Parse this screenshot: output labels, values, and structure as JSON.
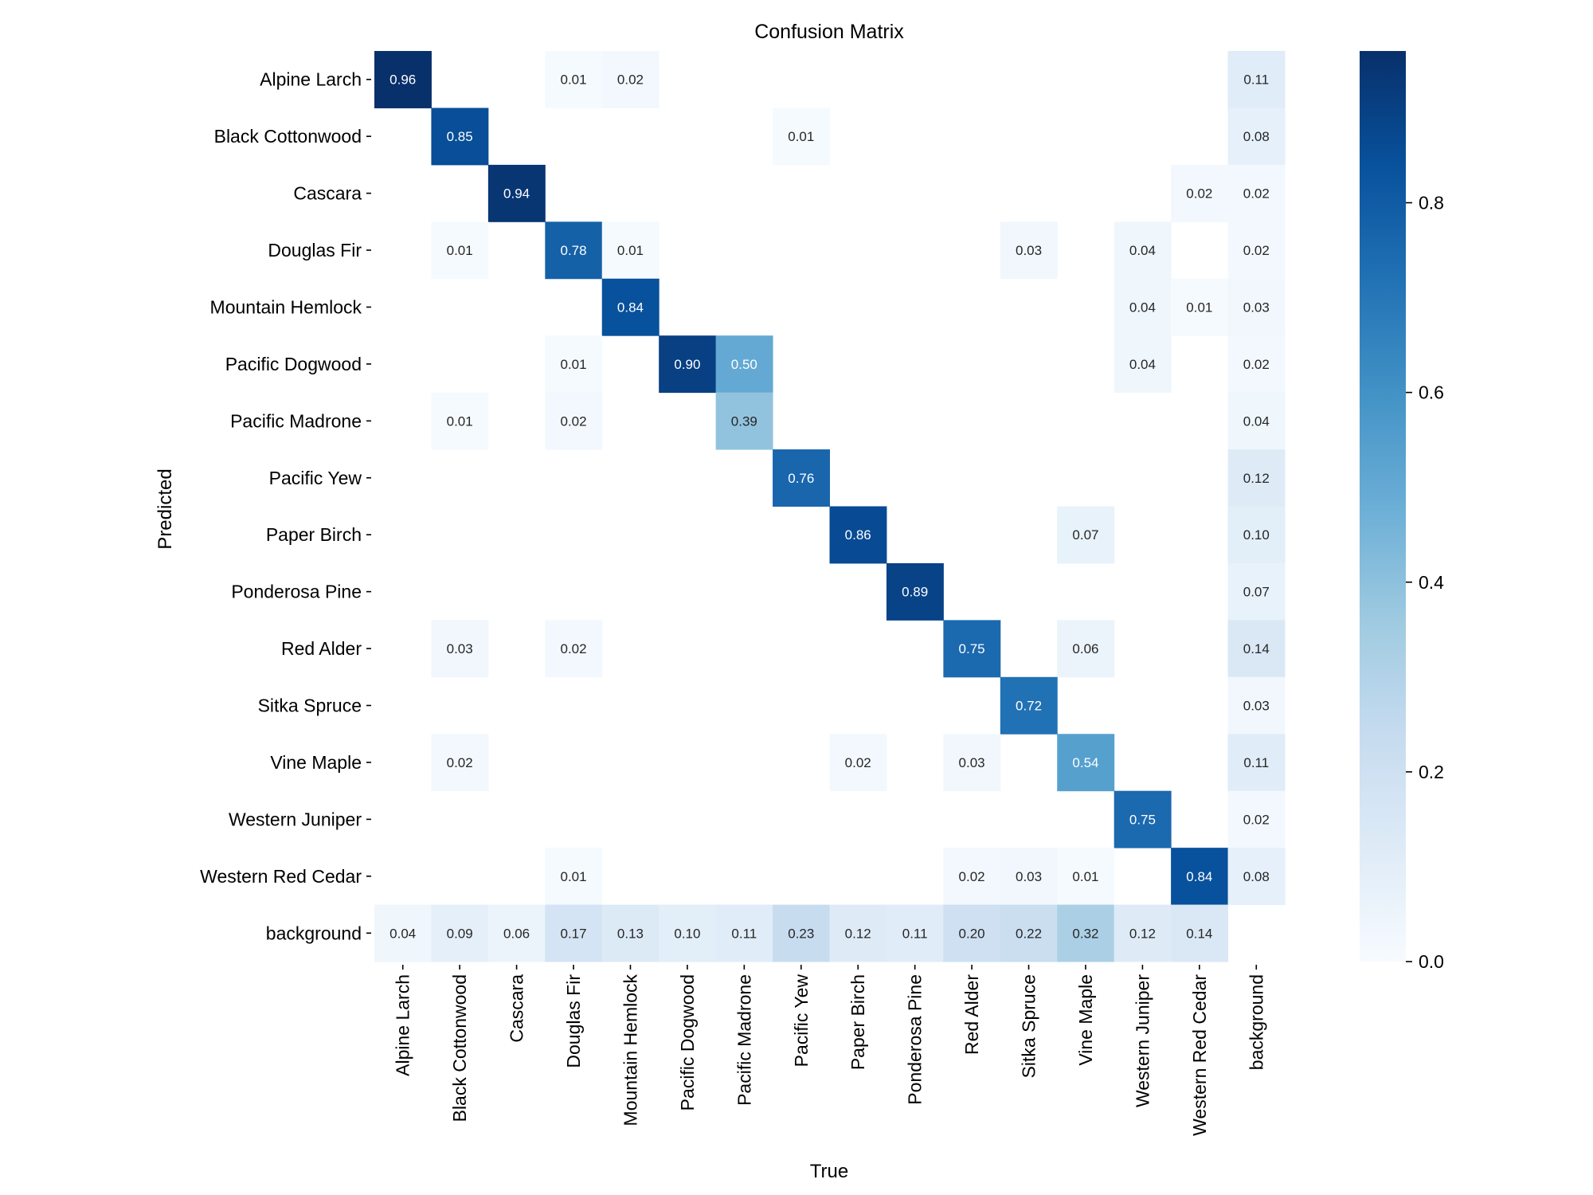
{
  "chart_data": {
    "type": "heatmap",
    "title": "Confusion Matrix",
    "xlabel": "True",
    "ylabel": "Predicted",
    "classes": [
      "Alpine Larch",
      "Black Cottonwood",
      "Cascara",
      "Douglas Fir",
      "Mountain Hemlock",
      "Pacific Dogwood",
      "Pacific Madrone",
      "Pacific Yew",
      "Paper Birch",
      "Ponderosa Pine",
      "Red Alder",
      "Sitka Spruce",
      "Vine Maple",
      "Western Juniper",
      "Western Red Cedar",
      "background"
    ],
    "matrix": [
      [
        0.96,
        null,
        null,
        0.01,
        0.02,
        null,
        null,
        null,
        null,
        null,
        null,
        null,
        null,
        null,
        null,
        0.11
      ],
      [
        null,
        0.85,
        null,
        null,
        null,
        null,
        null,
        0.01,
        null,
        null,
        null,
        null,
        null,
        null,
        null,
        0.08
      ],
      [
        null,
        null,
        0.94,
        null,
        null,
        null,
        null,
        null,
        null,
        null,
        null,
        null,
        null,
        null,
        0.02,
        0.02
      ],
      [
        null,
        0.01,
        null,
        0.78,
        0.01,
        null,
        null,
        null,
        null,
        null,
        null,
        0.03,
        null,
        0.04,
        null,
        0.02
      ],
      [
        null,
        null,
        null,
        null,
        0.84,
        null,
        null,
        null,
        null,
        null,
        null,
        null,
        null,
        0.04,
        0.01,
        0.03
      ],
      [
        null,
        null,
        null,
        0.01,
        null,
        0.9,
        0.5,
        null,
        null,
        null,
        null,
        null,
        null,
        0.04,
        null,
        0.02
      ],
      [
        null,
        0.01,
        null,
        0.02,
        null,
        null,
        0.39,
        null,
        null,
        null,
        null,
        null,
        null,
        null,
        null,
        0.04
      ],
      [
        null,
        null,
        null,
        null,
        null,
        null,
        null,
        0.76,
        null,
        null,
        null,
        null,
        null,
        null,
        null,
        0.12
      ],
      [
        null,
        null,
        null,
        null,
        null,
        null,
        null,
        null,
        0.86,
        null,
        null,
        null,
        0.07,
        null,
        null,
        0.1
      ],
      [
        null,
        null,
        null,
        null,
        null,
        null,
        null,
        null,
        null,
        0.89,
        null,
        null,
        null,
        null,
        null,
        0.07
      ],
      [
        null,
        0.03,
        null,
        0.02,
        null,
        null,
        null,
        null,
        null,
        null,
        0.75,
        null,
        0.06,
        null,
        null,
        0.14
      ],
      [
        null,
        null,
        null,
        null,
        null,
        null,
        null,
        null,
        null,
        null,
        null,
        0.72,
        null,
        null,
        null,
        0.03
      ],
      [
        null,
        0.02,
        null,
        null,
        null,
        null,
        null,
        null,
        0.02,
        null,
        0.03,
        null,
        0.54,
        null,
        null,
        0.11
      ],
      [
        null,
        null,
        null,
        null,
        null,
        null,
        null,
        null,
        null,
        null,
        null,
        null,
        null,
        0.75,
        null,
        0.02
      ],
      [
        null,
        null,
        null,
        0.01,
        null,
        null,
        null,
        null,
        null,
        null,
        0.02,
        0.03,
        0.01,
        null,
        0.84,
        0.08
      ],
      [
        0.04,
        0.09,
        0.06,
        0.17,
        0.13,
        0.1,
        0.11,
        0.23,
        0.12,
        0.11,
        0.2,
        0.22,
        0.32,
        0.12,
        0.14,
        null
      ]
    ],
    "value_format": "2 decimals",
    "colormap": "Blues",
    "color_range": [
      0.0,
      0.96
    ],
    "colorbar_ticks": [
      0.0,
      0.2,
      0.4,
      0.6,
      0.8
    ],
    "colorbar_tick_labels": [
      "0.0",
      "0.2",
      "0.4",
      "0.6",
      "0.8"
    ],
    "grid": false,
    "legend": "colorbar right"
  }
}
